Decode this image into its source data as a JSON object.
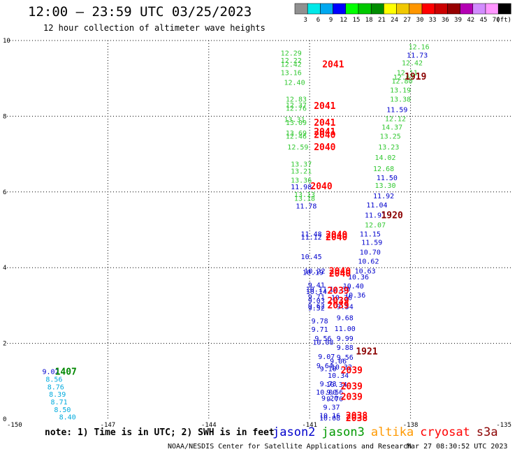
{
  "header": {
    "title": "12:00 – 23:59 UTC 03/25/2023",
    "subtitle": "12 hour collection of altimeter wave heights"
  },
  "legend": {
    "unit": "(ft)",
    "bins": [
      {
        "label": "3",
        "color": "#909090"
      },
      {
        "label": "6",
        "color": "#00e8e8"
      },
      {
        "label": "9",
        "color": "#00a8f0"
      },
      {
        "label": "12",
        "color": "#0000ff"
      },
      {
        "label": "15",
        "color": "#00ff00"
      },
      {
        "label": "18",
        "color": "#00c800"
      },
      {
        "label": "21",
        "color": "#008c00"
      },
      {
        "label": "24",
        "color": "#ffff00"
      },
      {
        "label": "27",
        "color": "#f0c800"
      },
      {
        "label": "30",
        "color": "#ff9600"
      },
      {
        "label": "33",
        "color": "#ff0000"
      },
      {
        "label": "36",
        "color": "#cc0000"
      },
      {
        "label": "39",
        "color": "#960000"
      },
      {
        "label": "42",
        "color": "#b400b4"
      },
      {
        "label": "45",
        "color": "#d28cff"
      },
      {
        "label": "70",
        "color": "#ff96ff"
      },
      {
        "label": "",
        "color": "#000000"
      }
    ]
  },
  "notes": {
    "note": "note:  1) Time is in UTC;  2) SWH is in feet",
    "credit": "NOAA/NESDIS Center for Satellite Applications and Research",
    "stamp": "Mar 27 08:30:52 UTC 2023"
  },
  "satellites": [
    {
      "name": "jason2",
      "color": "#0000cc"
    },
    {
      "name": "jason3",
      "color": "#009900"
    },
    {
      "name": "altika",
      "color": "#ff9900"
    },
    {
      "name": "cryosat",
      "color": "#ff0000"
    },
    {
      "name": "s3a",
      "color": "#8b0000"
    }
  ],
  "chart_data": {
    "type": "scatter",
    "xlim": [
      -150,
      -135
    ],
    "ylim": [
      0,
      10
    ],
    "xticks": [
      "-150",
      "-147",
      "-144",
      "-141",
      "-138",
      "-135"
    ],
    "yticks": [
      "0",
      "2",
      "4",
      "6",
      "8",
      "10"
    ],
    "grid": true,
    "points": [
      {
        "x": -141.55,
        "y": 9.68,
        "t": "12.29",
        "c": "#32c832"
      },
      {
        "x": -141.55,
        "y": 9.48,
        "t": "12.22",
        "c": "#32c832"
      },
      {
        "x": -141.55,
        "y": 9.38,
        "t": "12.42",
        "c": "#32c832"
      },
      {
        "x": -141.55,
        "y": 9.16,
        "t": "13.16",
        "c": "#32c832"
      },
      {
        "x": -141.45,
        "y": 8.9,
        "t": "12.40",
        "c": "#32c832"
      },
      {
        "x": -141.4,
        "y": 8.46,
        "t": "12.83",
        "c": "#32c832"
      },
      {
        "x": -141.4,
        "y": 8.3,
        "t": "12.37",
        "c": "#32c832"
      },
      {
        "x": -141.4,
        "y": 8.22,
        "t": "12.76",
        "c": "#32c832"
      },
      {
        "x": -141.45,
        "y": 7.92,
        "t": "13.31",
        "c": "#32c832"
      },
      {
        "x": -141.4,
        "y": 7.84,
        "t": "13.09",
        "c": "#32c832"
      },
      {
        "x": -141.4,
        "y": 7.56,
        "t": "13.69",
        "c": "#32c832"
      },
      {
        "x": -141.4,
        "y": 7.48,
        "t": "12.46",
        "c": "#32c832"
      },
      {
        "x": -141.35,
        "y": 7.2,
        "t": "12.59",
        "c": "#32c832"
      },
      {
        "x": -141.25,
        "y": 6.74,
        "t": "13.37",
        "c": "#32c832"
      },
      {
        "x": -141.25,
        "y": 6.56,
        "t": "13.21",
        "c": "#32c832"
      },
      {
        "x": -141.25,
        "y": 6.32,
        "t": "13.36",
        "c": "#32c832"
      },
      {
        "x": -141.15,
        "y": 5.94,
        "t": "13.13",
        "c": "#32c832"
      },
      {
        "x": -141.15,
        "y": 5.84,
        "t": "13.18",
        "c": "#32c832"
      },
      {
        "x": -141.25,
        "y": 6.14,
        "t": "11.98",
        "c": "#0000cc"
      },
      {
        "x": -141.1,
        "y": 5.64,
        "t": "11.78",
        "c": "#0000cc"
      },
      {
        "x": -140.95,
        "y": 4.9,
        "t": "11.48",
        "c": "#0000cc"
      },
      {
        "x": -140.95,
        "y": 4.82,
        "t": "11.12",
        "c": "#0000cc"
      },
      {
        "x": -140.95,
        "y": 4.3,
        "t": "10.45",
        "c": "#0000cc"
      },
      {
        "x": -140.85,
        "y": 3.92,
        "t": "10.22",
        "c": "#0000cc"
      },
      {
        "x": -140.9,
        "y": 3.88,
        "t": "10.19",
        "c": "#0000cc"
      },
      {
        "x": -140.8,
        "y": 3.55,
        "t": "9.41",
        "c": "#0000cc"
      },
      {
        "x": -140.8,
        "y": 3.44,
        "t": "10.11",
        "c": "#0000cc"
      },
      {
        "x": -140.8,
        "y": 3.38,
        "t": "10.14",
        "c": "#0000cc"
      },
      {
        "x": -140.8,
        "y": 3.24,
        "t": "9.71",
        "c": "#0000cc"
      },
      {
        "x": -140.8,
        "y": 3.14,
        "t": "9.03",
        "c": "#0000cc"
      },
      {
        "x": -140.8,
        "y": 3.0,
        "t": "9.62",
        "c": "#0000cc"
      },
      {
        "x": -140.8,
        "y": 2.94,
        "t": "9.52",
        "c": "#0000cc"
      },
      {
        "x": -140.7,
        "y": 2.6,
        "t": "9.78",
        "c": "#0000cc"
      },
      {
        "x": -140.7,
        "y": 2.38,
        "t": "9.71",
        "c": "#0000cc"
      },
      {
        "x": -140.6,
        "y": 2.14,
        "t": "9.56",
        "c": "#0000cc"
      },
      {
        "x": -140.6,
        "y": 2.04,
        "t": "10.08",
        "c": "#0000cc"
      },
      {
        "x": -140.5,
        "y": 1.66,
        "t": "9.07",
        "c": "#0000cc"
      },
      {
        "x": -140.55,
        "y": 1.42,
        "t": "9.64",
        "c": "#0000cc"
      },
      {
        "x": -140.45,
        "y": 1.34,
        "t": "9.10",
        "c": "#0000cc"
      },
      {
        "x": -140.45,
        "y": 0.94,
        "t": "9.73",
        "c": "#0000cc"
      },
      {
        "x": -140.5,
        "y": 0.72,
        "t": "10.00",
        "c": "#0000cc"
      },
      {
        "x": -140.4,
        "y": 0.56,
        "t": "9.20",
        "c": "#0000cc"
      },
      {
        "x": -140.35,
        "y": 0.32,
        "t": "9.37",
        "c": "#0000cc"
      },
      {
        "x": -140.4,
        "y": 0.1,
        "t": "10.16",
        "c": "#0000cc"
      },
      {
        "x": -140.4,
        "y": 0.04,
        "t": "10.08",
        "c": "#0000cc"
      },
      {
        "x": -140.1,
        "y": 3.44,
        "t": "10.30",
        "c": "#0000cc"
      },
      {
        "x": -140.05,
        "y": 3.22,
        "t": "10.36",
        "c": "#0000cc"
      },
      {
        "x": -139.95,
        "y": 2.98,
        "t": "9.54",
        "c": "#0000cc"
      },
      {
        "x": -139.95,
        "y": 2.68,
        "t": "9.68",
        "c": "#0000cc"
      },
      {
        "x": -139.95,
        "y": 2.4,
        "t": "11.00",
        "c": "#0000cc"
      },
      {
        "x": -139.95,
        "y": 2.14,
        "t": "9.99",
        "c": "#0000cc"
      },
      {
        "x": -139.95,
        "y": 1.9,
        "t": "9.88",
        "c": "#0000cc"
      },
      {
        "x": -139.95,
        "y": 1.64,
        "t": "9.56",
        "c": "#0000cc"
      },
      {
        "x": -140.15,
        "y": 1.54,
        "t": "9.06",
        "c": "#0000cc"
      },
      {
        "x": -140.05,
        "y": 1.38,
        "t": "10.32",
        "c": "#0000cc"
      },
      {
        "x": -140.15,
        "y": 1.16,
        "t": "10.34",
        "c": "#0000cc"
      },
      {
        "x": -140.2,
        "y": 0.92,
        "t": "10.34",
        "c": "#0000cc"
      },
      {
        "x": -140.25,
        "y": 0.72,
        "t": "9.56",
        "c": "#0000cc"
      },
      {
        "x": -140.25,
        "y": 0.54,
        "t": "9.70",
        "c": "#0000cc"
      },
      {
        "x": -139.7,
        "y": 3.52,
        "t": "10.40",
        "c": "#0000cc"
      },
      {
        "x": -139.65,
        "y": 3.28,
        "t": "10.36",
        "c": "#0000cc"
      },
      {
        "x": -139.55,
        "y": 3.76,
        "t": "10.36",
        "c": "#0000cc"
      },
      {
        "x": -139.35,
        "y": 3.92,
        "t": "10.63",
        "c": "#0000cc"
      },
      {
        "x": -139.25,
        "y": 4.18,
        "t": "10.62",
        "c": "#0000cc"
      },
      {
        "x": -139.2,
        "y": 4.42,
        "t": "10.70",
        "c": "#0000cc"
      },
      {
        "x": -139.15,
        "y": 4.68,
        "t": "11.59",
        "c": "#0000cc"
      },
      {
        "x": -139.2,
        "y": 4.9,
        "t": "11.15",
        "c": "#0000cc"
      },
      {
        "x": -139.05,
        "y": 5.4,
        "t": "11.91",
        "c": "#0000cc"
      },
      {
        "x": -139.0,
        "y": 5.66,
        "t": "11.04",
        "c": "#0000cc"
      },
      {
        "x": -138.8,
        "y": 5.9,
        "t": "11.92",
        "c": "#0000cc"
      },
      {
        "x": -138.7,
        "y": 6.38,
        "t": "11.50",
        "c": "#0000cc"
      },
      {
        "x": -138.4,
        "y": 8.18,
        "t": "11.59",
        "c": "#0000cc"
      },
      {
        "x": -137.8,
        "y": 9.62,
        "t": "11.73",
        "c": "#0000cc"
      },
      {
        "x": -139.05,
        "y": 5.14,
        "t": "12.07",
        "c": "#32c832"
      },
      {
        "x": -138.75,
        "y": 6.18,
        "t": "13.30",
        "c": "#32c832"
      },
      {
        "x": -138.8,
        "y": 6.62,
        "t": "12.68",
        "c": "#32c832"
      },
      {
        "x": -138.75,
        "y": 6.92,
        "t": "14.02",
        "c": "#32c832"
      },
      {
        "x": -138.65,
        "y": 7.2,
        "t": "13.23",
        "c": "#32c832"
      },
      {
        "x": -138.6,
        "y": 7.48,
        "t": "13.25",
        "c": "#32c832"
      },
      {
        "x": -138.55,
        "y": 7.72,
        "t": "14.37",
        "c": "#32c832"
      },
      {
        "x": -138.45,
        "y": 7.94,
        "t": "12.12",
        "c": "#32c832"
      },
      {
        "x": -138.3,
        "y": 8.46,
        "t": "13.38",
        "c": "#32c832"
      },
      {
        "x": -138.3,
        "y": 8.7,
        "t": "13.19",
        "c": "#32c832"
      },
      {
        "x": -138.25,
        "y": 8.94,
        "t": "12.80",
        "c": "#32c832"
      },
      {
        "x": -138.2,
        "y": 9.04,
        "t": "12.62",
        "c": "#32c832"
      },
      {
        "x": -138.1,
        "y": 9.16,
        "t": "12.11",
        "c": "#32c832"
      },
      {
        "x": -137.95,
        "y": 9.42,
        "t": "12.42",
        "c": "#32c832"
      },
      {
        "x": -137.75,
        "y": 9.84,
        "t": "12.16",
        "c": "#32c832"
      },
      {
        "x": -148.7,
        "y": 1.26,
        "t": "9.02",
        "c": "#0000cc"
      },
      {
        "x": -148.6,
        "y": 1.06,
        "t": "8.56",
        "c": "#00aadd"
      },
      {
        "x": -148.55,
        "y": 0.86,
        "t": "8.76",
        "c": "#00aadd"
      },
      {
        "x": -148.5,
        "y": 0.66,
        "t": "8.39",
        "c": "#00aadd"
      },
      {
        "x": -148.45,
        "y": 0.46,
        "t": "8.71",
        "c": "#00aadd"
      },
      {
        "x": -148.35,
        "y": 0.26,
        "t": "8.50",
        "c": "#00aadd"
      },
      {
        "x": -148.2,
        "y": 0.06,
        "t": "8.40",
        "c": "#00aadd"
      }
    ],
    "track_ids": [
      {
        "x": -140.3,
        "y": 9.38,
        "t": "2041",
        "c": "#ff0000"
      },
      {
        "x": -140.55,
        "y": 8.28,
        "t": "2041",
        "c": "#ff0000"
      },
      {
        "x": -140.55,
        "y": 7.84,
        "t": "2041",
        "c": "#ff0000"
      },
      {
        "x": -140.55,
        "y": 7.6,
        "t": "2041",
        "c": "#ff0000"
      },
      {
        "x": -140.55,
        "y": 7.52,
        "t": "2040",
        "c": "#ff0000"
      },
      {
        "x": -140.55,
        "y": 7.2,
        "t": "2040",
        "c": "#ff0000"
      },
      {
        "x": -140.65,
        "y": 6.16,
        "t": "2040",
        "c": "#ff0000"
      },
      {
        "x": -140.2,
        "y": 4.88,
        "t": "2040",
        "c": "#ff0000"
      },
      {
        "x": -140.2,
        "y": 4.82,
        "t": "2040",
        "c": "#ff0000"
      },
      {
        "x": -140.1,
        "y": 3.92,
        "t": "2040",
        "c": "#ff0000"
      },
      {
        "x": -140.1,
        "y": 3.86,
        "t": "2040",
        "c": "#ff0000"
      },
      {
        "x": -140.15,
        "y": 3.4,
        "t": "2039",
        "c": "#ff0000"
      },
      {
        "x": -140.15,
        "y": 3.14,
        "t": "2039",
        "c": "#ff0000"
      },
      {
        "x": -140.15,
        "y": 3.02,
        "t": "2039",
        "c": "#ff0000"
      },
      {
        "x": -139.75,
        "y": 1.3,
        "t": "2039",
        "c": "#ff0000"
      },
      {
        "x": -139.75,
        "y": 0.88,
        "t": "2039",
        "c": "#ff0000"
      },
      {
        "x": -139.75,
        "y": 0.6,
        "t": "2039",
        "c": "#ff0000"
      },
      {
        "x": -139.6,
        "y": 0.1,
        "t": "2038",
        "c": "#ff0000"
      },
      {
        "x": -139.6,
        "y": 0.04,
        "t": "2038",
        "c": "#ff0000"
      },
      {
        "x": -137.85,
        "y": 9.06,
        "t": "1919",
        "c": "#8b0000"
      },
      {
        "x": -138.55,
        "y": 5.4,
        "t": "1920",
        "c": "#8b0000"
      },
      {
        "x": -139.3,
        "y": 1.8,
        "t": "1921",
        "c": "#8b0000"
      },
      {
        "x": -148.25,
        "y": 1.26,
        "t": "1407",
        "c": "#008800"
      }
    ]
  }
}
